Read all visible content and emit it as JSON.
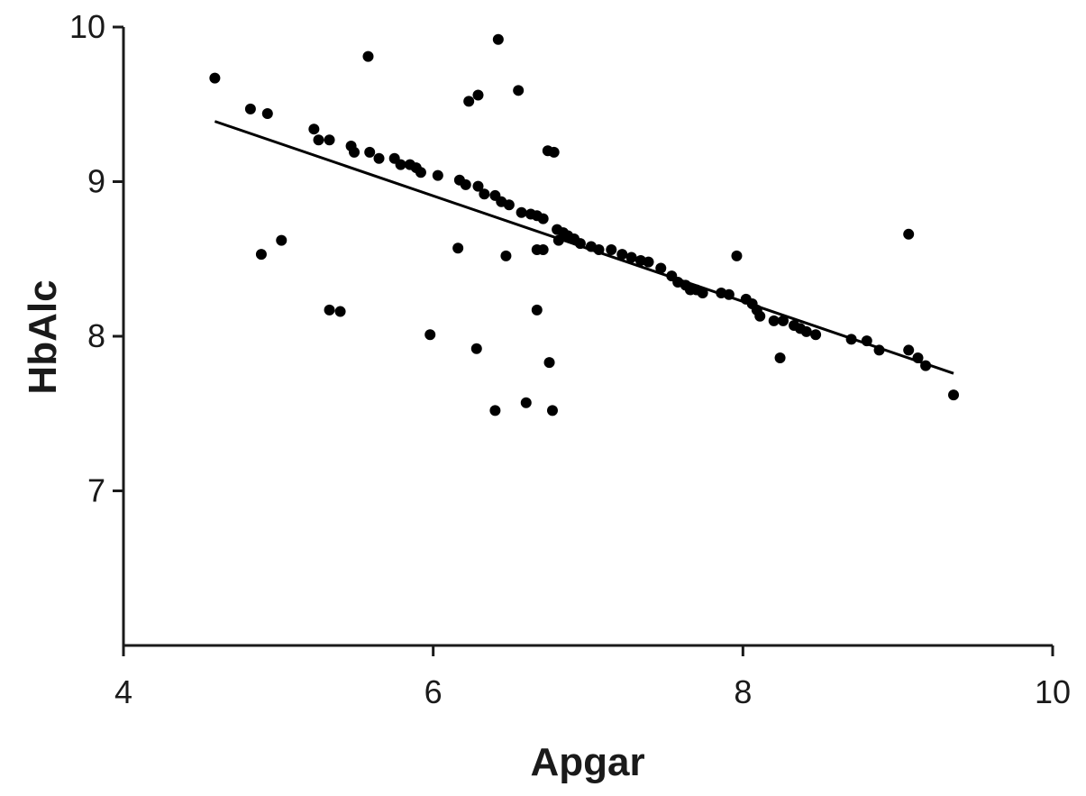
{
  "chart_data": {
    "type": "scatter",
    "xlabel": "Apgar",
    "ylabel": "HbAlc",
    "xlim": [
      4,
      10
    ],
    "ylim": [
      6,
      10
    ],
    "xticks": [
      4,
      6,
      8,
      10
    ],
    "yticks": [
      7,
      8,
      9,
      10
    ],
    "color": "#000000",
    "x": [
      4.59,
      4.82,
      4.93,
      4.89,
      5.02,
      5.23,
      5.26,
      5.33,
      5.33,
      5.4,
      5.58,
      5.47,
      5.49,
      5.59,
      5.65,
      5.75,
      5.79,
      5.85,
      5.89,
      5.92,
      6.03,
      5.98,
      6.17,
      6.21,
      6.16,
      6.23,
      6.29,
      6.28,
      6.29,
      6.33,
      6.4,
      6.44,
      6.49,
      6.42,
      6.4,
      6.47,
      6.55,
      6.57,
      6.63,
      6.67,
      6.71,
      6.74,
      6.78,
      6.6,
      6.67,
      6.67,
      6.71,
      6.75,
      6.77,
      6.8,
      6.81,
      6.84,
      6.87,
      6.91,
      6.95,
      7.02,
      7.07,
      7.15,
      7.22,
      7.28,
      7.34,
      7.39,
      7.47,
      7.54,
      7.58,
      7.63,
      7.66,
      7.7,
      7.74,
      7.86,
      7.91,
      7.96,
      8.02,
      8.06,
      8.09,
      8.11,
      8.2,
      8.26,
      8.24,
      8.33,
      8.37,
      8.41,
      8.47,
      8.7,
      8.8,
      8.88,
      9.07,
      9.07,
      9.13,
      9.18,
      9.36
    ],
    "y": [
      9.67,
      9.47,
      9.44,
      8.53,
      8.62,
      9.34,
      9.27,
      9.27,
      8.17,
      8.16,
      9.81,
      9.23,
      9.19,
      9.19,
      9.15,
      9.15,
      9.11,
      9.11,
      9.09,
      9.06,
      9.04,
      8.01,
      9.01,
      8.98,
      8.57,
      9.52,
      9.56,
      7.92,
      8.97,
      8.92,
      8.91,
      8.87,
      8.85,
      9.92,
      7.52,
      8.52,
      9.59,
      8.8,
      8.79,
      8.78,
      8.76,
      9.2,
      9.19,
      7.57,
      8.17,
      8.56,
      8.56,
      7.83,
      7.52,
      8.69,
      8.62,
      8.67,
      8.65,
      8.63,
      8.6,
      8.58,
      8.56,
      8.56,
      8.53,
      8.51,
      8.49,
      8.48,
      8.44,
      8.39,
      8.35,
      8.33,
      8.3,
      8.3,
      8.28,
      8.28,
      8.27,
      8.52,
      8.24,
      8.21,
      8.17,
      8.13,
      8.1,
      8.1,
      7.86,
      8.07,
      8.05,
      8.03,
      8.01,
      7.98,
      7.97,
      7.91,
      8.66,
      7.91,
      7.86,
      7.81,
      7.62
    ],
    "fit_line": {
      "x": [
        4.59,
        9.36
      ],
      "y": [
        9.39,
        7.76
      ],
      "color": "#000000"
    }
  }
}
